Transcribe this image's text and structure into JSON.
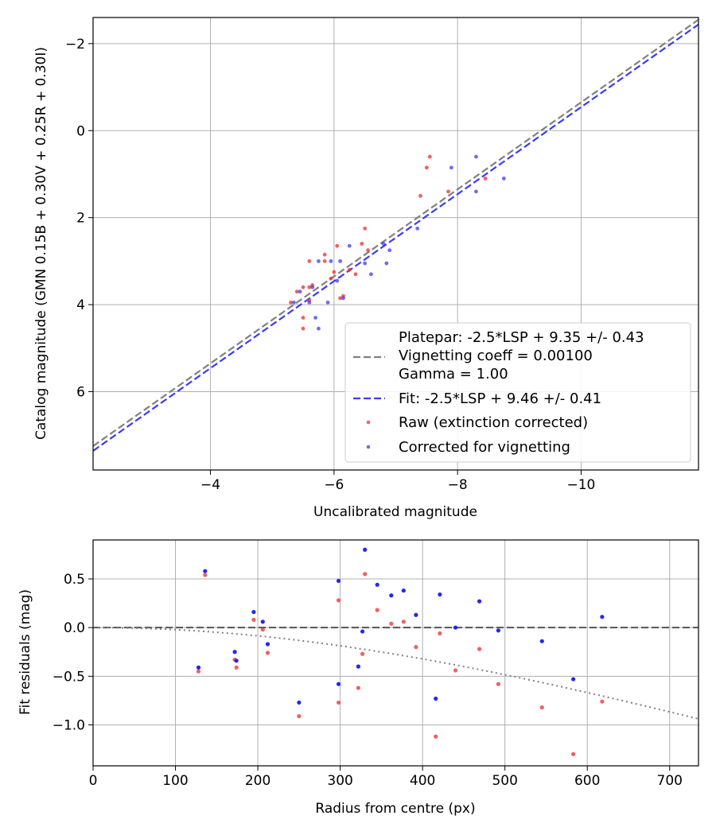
{
  "chart_data": [
    {
      "type": "scatter",
      "xlabel": "Uncalibrated magnitude",
      "ylabel": "Catalog magnitude (GMN 0.15B + 0.30V + 0.25R + 0.30I)",
      "xlim": [
        -2.1,
        -11.9
      ],
      "ylim": [
        7.8,
        -2.6
      ],
      "xticks": [
        -4,
        -6,
        -8,
        -10
      ],
      "xtick_labels": [
        "−4",
        "−6",
        "−8",
        "−10"
      ],
      "yticks": [
        -2,
        0,
        2,
        4,
        6
      ],
      "ytick_labels": [
        "−2",
        "0",
        "2",
        "4",
        "6"
      ],
      "grid": true,
      "legend_position": "lower-right",
      "lines": [
        {
          "name": "Platepar: -2.5*LSP + 9.35 +/- 0.43\nVignetting coeff = 0.00100\nGamma = 1.00",
          "slope": 1.0,
          "intercept": 9.35,
          "color": "#808080",
          "style": "dashed"
        },
        {
          "name": "Fit: -2.5*LSP + 9.46 +/- 0.41",
          "slope": 1.0,
          "intercept": 9.46,
          "color": "#3b3bf5",
          "style": "dashed"
        }
      ],
      "series": [
        {
          "name": "Raw (extinction corrected)",
          "color": "#f02a2a",
          "points": [
            [
              -5.3,
              3.95
            ],
            [
              -5.4,
              3.7
            ],
            [
              -5.5,
              3.6
            ],
            [
              -5.5,
              4.3
            ],
            [
              -5.5,
              4.55
            ],
            [
              -5.6,
              3.9
            ],
            [
              -5.6,
              3.6
            ],
            [
              -5.6,
              3.0
            ],
            [
              -5.65,
              3.55
            ],
            [
              -5.85,
              2.85
            ],
            [
              -5.85,
              3.0
            ],
            [
              -5.95,
              3.4
            ],
            [
              -6.0,
              3.25
            ],
            [
              -6.05,
              2.65
            ],
            [
              -6.1,
              3.85
            ],
            [
              -6.15,
              3.8
            ],
            [
              -6.25,
              3.2
            ],
            [
              -6.35,
              3.3
            ],
            [
              -6.45,
              2.6
            ],
            [
              -6.5,
              2.25
            ],
            [
              -6.55,
              2.75
            ],
            [
              -7.4,
              1.5
            ],
            [
              -7.5,
              0.85
            ],
            [
              -7.55,
              0.6
            ],
            [
              -7.85,
              1.4
            ],
            [
              -8.45,
              1.1
            ]
          ]
        },
        {
          "name": "Corrected for vignetting",
          "color": "#3b3bf5",
          "points": [
            [
              -5.35,
              3.95
            ],
            [
              -5.45,
              3.7
            ],
            [
              -5.6,
              3.95
            ],
            [
              -5.65,
              3.6
            ],
            [
              -5.7,
              4.3
            ],
            [
              -5.75,
              3.0
            ],
            [
              -5.75,
              4.55
            ],
            [
              -5.9,
              3.95
            ],
            [
              -5.95,
              3.0
            ],
            [
              -6.05,
              3.45
            ],
            [
              -6.1,
              3.0
            ],
            [
              -6.15,
              3.85
            ],
            [
              -6.25,
              2.65
            ],
            [
              -6.5,
              3.05
            ],
            [
              -6.6,
              3.3
            ],
            [
              -6.8,
              2.6
            ],
            [
              -6.85,
              3.05
            ],
            [
              -6.9,
              2.75
            ],
            [
              -7.35,
              2.25
            ],
            [
              -7.9,
              0.85
            ],
            [
              -8.3,
              0.6
            ],
            [
              -8.3,
              1.4
            ],
            [
              -8.75,
              1.1
            ]
          ]
        }
      ]
    },
    {
      "type": "scatter",
      "xlabel": "Radius from centre (px)",
      "ylabel": "Fit residuals (mag)",
      "xlim": [
        0,
        735
      ],
      "ylim": [
        -1.42,
        0.9
      ],
      "xticks": [
        0,
        100,
        200,
        300,
        400,
        500,
        600,
        700
      ],
      "xtick_labels": [
        "0",
        "100",
        "200",
        "300",
        "400",
        "500",
        "600",
        "700"
      ],
      "yticks": [
        0.5,
        0.0,
        -0.5,
        -1.0
      ],
      "ytick_labels": [
        "0.5",
        "0.0",
        "−0.5",
        "−1.0"
      ],
      "grid": true,
      "reference_line": {
        "y": 0.0,
        "color": "#555555",
        "style": "dashed"
      },
      "vignetting_curve": {
        "description": "dotted vignetting model",
        "color": "#808080",
        "style": "dotted",
        "coeff": 0.001
      },
      "series": [
        {
          "name": "Raw (extinction corrected)",
          "color": "#f02a2a",
          "x": [
            128,
            136,
            172,
            174,
            195,
            206,
            212,
            250,
            298,
            298,
            322,
            327,
            330,
            345,
            362,
            377,
            392,
            416,
            421,
            440,
            469,
            492,
            545,
            583,
            618
          ],
          "y": [
            -0.45,
            0.54,
            -0.33,
            -0.41,
            0.08,
            -0.02,
            -0.26,
            -0.91,
            0.28,
            -0.77,
            -0.62,
            -0.27,
            0.55,
            0.18,
            0.04,
            0.06,
            -0.2,
            -1.12,
            -0.06,
            -0.44,
            -0.22,
            -0.58,
            -0.82,
            -1.3,
            -0.76
          ]
        },
        {
          "name": "Corrected for vignetting",
          "color": "#1a1af0",
          "x": [
            128,
            136,
            172,
            174,
            195,
            206,
            212,
            250,
            298,
            298,
            322,
            327,
            330,
            345,
            362,
            377,
            392,
            416,
            421,
            440,
            469,
            492,
            545,
            583,
            618
          ],
          "y": [
            -0.41,
            0.58,
            -0.25,
            -0.34,
            0.16,
            0.06,
            -0.17,
            -0.77,
            0.48,
            -0.58,
            -0.4,
            -0.04,
            0.8,
            0.44,
            0.33,
            0.38,
            0.13,
            -0.73,
            0.34,
            0.0,
            0.27,
            -0.03,
            -0.14,
            -0.53,
            0.11
          ]
        }
      ]
    }
  ]
}
